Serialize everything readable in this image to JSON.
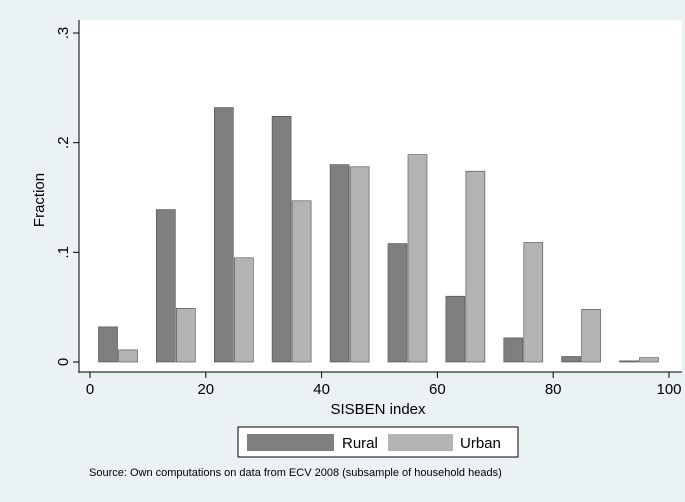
{
  "chart_data": {
    "type": "bar",
    "x": [
      5,
      15,
      25,
      35,
      45,
      55,
      65,
      75,
      85,
      95
    ],
    "series": [
      {
        "name": "Rural",
        "color": "#7f7f7f",
        "values": [
          0.032,
          0.139,
          0.232,
          0.224,
          0.18,
          0.108,
          0.06,
          0.022,
          0.005,
          0.001
        ]
      },
      {
        "name": "Urban",
        "color": "#b3b3b3",
        "values": [
          0.011,
          0.049,
          0.095,
          0.147,
          0.178,
          0.189,
          0.174,
          0.109,
          0.048,
          0.004
        ]
      }
    ],
    "xlabel": "SISBEN index",
    "ylabel": "Fraction",
    "xlim": [
      0,
      100
    ],
    "ylim": [
      0,
      0.3
    ],
    "xticks": [
      0,
      20,
      40,
      60,
      80,
      100
    ],
    "xtick_labels": [
      "0",
      "20",
      "40",
      "60",
      "80",
      "100"
    ],
    "yticks": [
      0,
      0.1,
      0.2,
      0.3
    ],
    "ytick_labels": [
      "0",
      ".1",
      ".2",
      ".3"
    ],
    "grid": false,
    "legend_position": "bottom",
    "note": "Source:  Own computations on data from ECV 2008 (subsample of household heads)"
  }
}
